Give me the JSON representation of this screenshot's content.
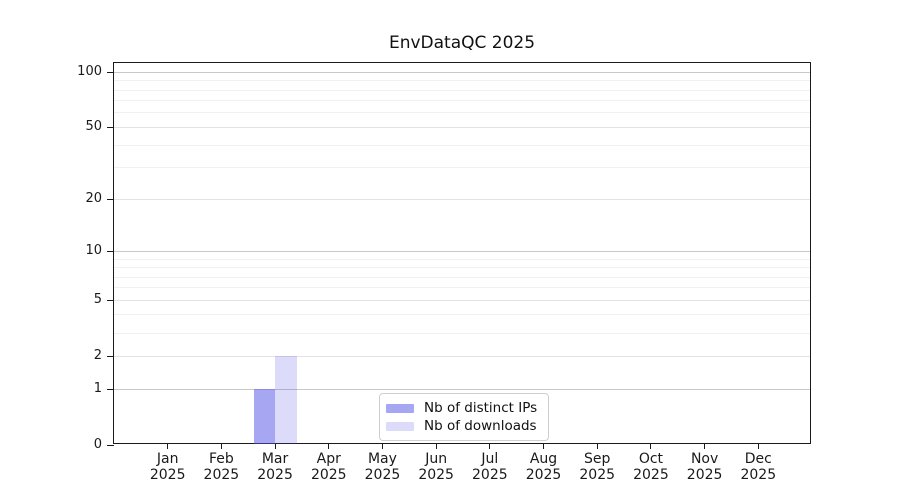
{
  "chart_data": {
    "type": "bar",
    "title": "EnvDataQC 2025",
    "categories": [
      "Jan 2025",
      "Feb 2025",
      "Mar 2025",
      "Apr 2025",
      "May 2025",
      "Jun 2025",
      "Jul 2025",
      "Aug 2025",
      "Sep 2025",
      "Oct 2025",
      "Nov 2025",
      "Dec 2025"
    ],
    "series": [
      {
        "name": "Nb of distinct IPs",
        "color": "rgba(80,80,230,0.51)",
        "values": [
          0,
          0,
          1,
          0,
          0,
          0,
          0,
          0,
          0,
          0,
          0,
          0
        ]
      },
      {
        "name": "Nb of downloads",
        "color": "rgba(80,80,230,0.20)",
        "values": [
          0,
          0,
          2,
          0,
          0,
          0,
          0,
          0,
          0,
          0,
          0,
          0
        ]
      }
    ],
    "xlabel": "",
    "ylabel": "",
    "y_ticks": [
      0,
      1,
      2,
      5,
      10,
      20,
      50,
      100
    ],
    "y_decade_ticks": [
      1,
      10,
      100
    ],
    "y_minor_gridlines": [
      3,
      4,
      6,
      7,
      8,
      9,
      30,
      40,
      60,
      70,
      80,
      90
    ],
    "scale": "log1p",
    "ylim": [
      0,
      112.2
    ],
    "grid": true,
    "legend_position": "lower center"
  }
}
